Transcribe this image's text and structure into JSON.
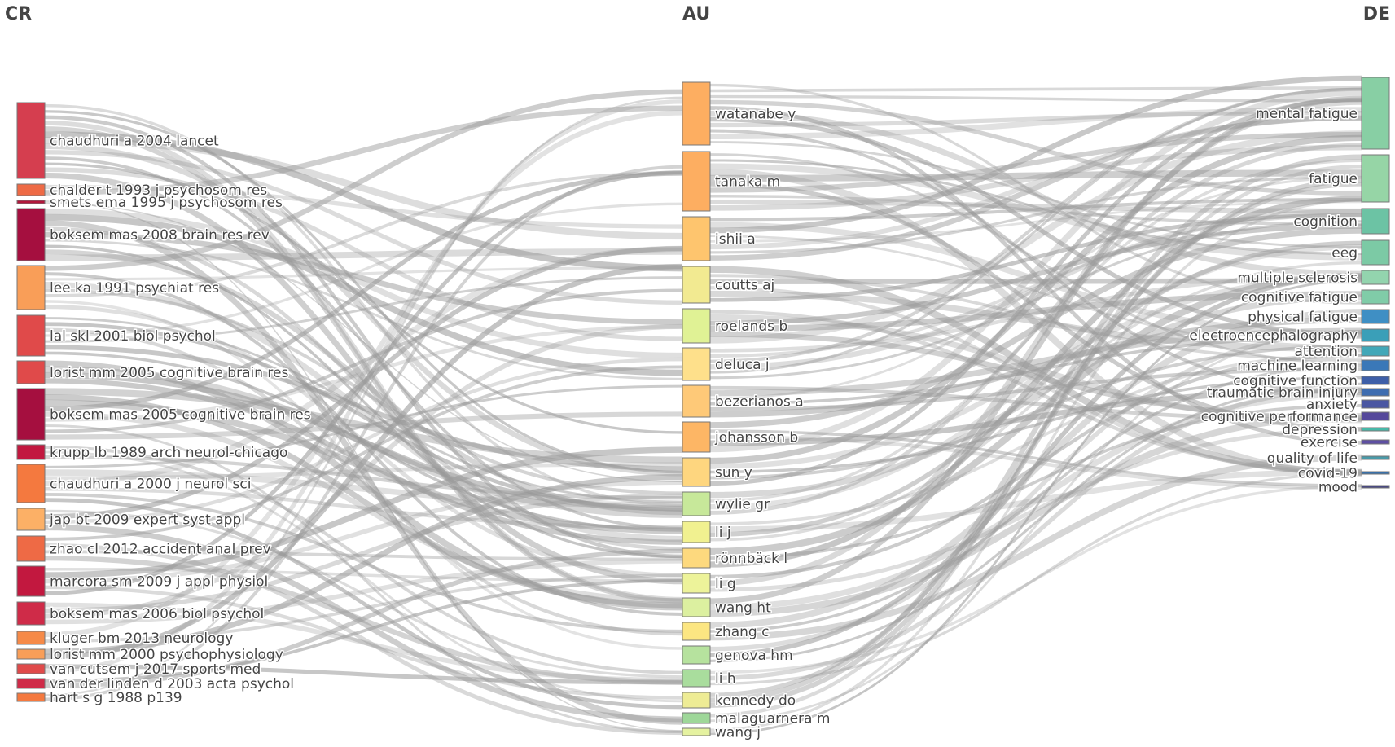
{
  "chart_data": {
    "type": "sankey",
    "columns": [
      {
        "key": "CR",
        "label": "CR"
      },
      {
        "key": "AU",
        "label": "AU"
      },
      {
        "key": "DE",
        "label": "DE"
      }
    ],
    "link_color": "#9a9a9a",
    "nodes": {
      "CR": [
        {
          "label": "chaudhuri a 2004 lancet",
          "color": "#d53e4f"
        },
        {
          "label": "chalder t 1993 j psychosom res",
          "color": "#ee6a45"
        },
        {
          "label": "smets ema 1995 j psychosom res",
          "color": "#b2183c"
        },
        {
          "label": "boksem mas 2008 brain res rev",
          "color": "#a50f3f"
        },
        {
          "label": "lee ka 1991 psychiat res",
          "color": "#f99e58"
        },
        {
          "label": "lal skl 2001 biol psychol",
          "color": "#e04a4a"
        },
        {
          "label": "lorist mm 2005 cognitive brain res",
          "color": "#e04a4a"
        },
        {
          "label": "boksem mas 2005 cognitive brain res",
          "color": "#a50f3f"
        },
        {
          "label": "krupp lb 1989 arch neurol-chicago",
          "color": "#c2183f"
        },
        {
          "label": "chaudhuri a 2000 j neurol sci",
          "color": "#f4793f"
        },
        {
          "label": "jap bt 2009 expert syst appl",
          "color": "#fcb066"
        },
        {
          "label": "zhao cl 2012 accident anal prev",
          "color": "#ee6a45"
        },
        {
          "label": "marcora sm 2009 j appl physiol",
          "color": "#c2183f"
        },
        {
          "label": "boksem mas 2006 biol psychol",
          "color": "#cf2b48"
        },
        {
          "label": "kluger bm 2013 neurology",
          "color": "#f68a48"
        },
        {
          "label": "lorist mm 2000 psychophysiology",
          "color": "#f99e58"
        },
        {
          "label": "van cutsem j 2017 sports med",
          "color": "#e04a4a"
        },
        {
          "label": "van der linden d 2003 acta psychol",
          "color": "#cf2b48"
        },
        {
          "label": "hart s g 1988 p139",
          "color": "#f4793f"
        }
      ],
      "AU": [
        {
          "label": "watanabe y",
          "color": "#fdae61"
        },
        {
          "label": "tanaka m",
          "color": "#fdae61"
        },
        {
          "label": "ishii a",
          "color": "#fec56e"
        },
        {
          "label": "coutts aj",
          "color": "#f2ea91"
        },
        {
          "label": "roelands b",
          "color": "#e0f295"
        },
        {
          "label": "deluca j",
          "color": "#fee08b"
        },
        {
          "label": "bezerianos a",
          "color": "#fec978"
        },
        {
          "label": "johansson b",
          "color": "#fdb665"
        },
        {
          "label": "sun y",
          "color": "#fed67f"
        },
        {
          "label": "wylie gr",
          "color": "#c7e89a"
        },
        {
          "label": "li j",
          "color": "#f1f190"
        },
        {
          "label": "rönnbäck l",
          "color": "#fdd97e"
        },
        {
          "label": "li g",
          "color": "#edf39a"
        },
        {
          "label": "wang ht",
          "color": "#dcf0a0"
        },
        {
          "label": "zhang c",
          "color": "#fce682"
        },
        {
          "label": "genova hm",
          "color": "#b6e29e"
        },
        {
          "label": "li h",
          "color": "#a9dd9d"
        },
        {
          "label": "kennedy do",
          "color": "#eeec95"
        },
        {
          "label": "malaguarnera m",
          "color": "#9ed799"
        },
        {
          "label": "wang j",
          "color": "#e5f2a0"
        }
      ],
      "DE": [
        {
          "label": "mental fatigue",
          "color": "#88cfa4"
        },
        {
          "label": "fatigue",
          "color": "#96d5a6"
        },
        {
          "label": "cognition",
          "color": "#6cc3a4"
        },
        {
          "label": "eeg",
          "color": "#7ccaa5"
        },
        {
          "label": "multiple sclerosis",
          "color": "#93d4ae"
        },
        {
          "label": "cognitive fatigue",
          "color": "#80cca8"
        },
        {
          "label": "physical fatigue",
          "color": "#3f8fc4"
        },
        {
          "label": "electroencephalography",
          "color": "#3a9fb8"
        },
        {
          "label": "attention",
          "color": "#42a8b8"
        },
        {
          "label": "machine learning",
          "color": "#3a78b8"
        },
        {
          "label": "cognitive function",
          "color": "#3e5fa8"
        },
        {
          "label": "traumatic brain injury",
          "color": "#3e6db0"
        },
        {
          "label": "anxiety",
          "color": "#4a56a2"
        },
        {
          "label": "cognitive performance",
          "color": "#55489b"
        },
        {
          "label": "depression",
          "color": "#48b8a8"
        },
        {
          "label": "exercise",
          "color": "#5e4fa2"
        },
        {
          "label": "quality of life",
          "color": "#4a9aa8"
        },
        {
          "label": "covid-19",
          "color": "#3a70a8"
        },
        {
          "label": "mood",
          "color": "#4a4a80"
        }
      ]
    }
  }
}
